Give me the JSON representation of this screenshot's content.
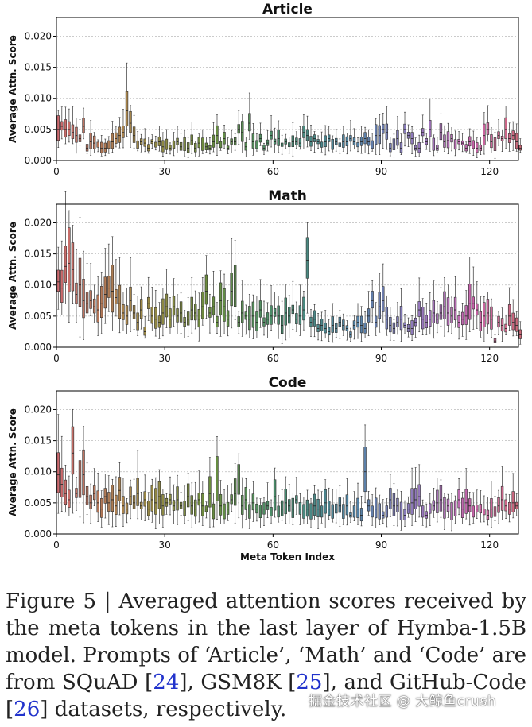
{
  "chart_data": [
    {
      "type": "box",
      "title": "Article",
      "ylabel": "Average Attn. Score",
      "xlabel": "",
      "ylim": [
        0,
        0.023
      ],
      "xlim": [
        0,
        128
      ],
      "yticks": [
        "0.000",
        "0.005",
        "0.010",
        "0.015",
        "0.020"
      ],
      "xticks": [
        "0",
        "30",
        "60",
        "90",
        "120"
      ],
      "medians": [
        0.005,
        0.0055,
        0.005,
        0.005,
        0.0045,
        0.004,
        0.0035,
        0.0055,
        0.002,
        0.003,
        0.0028,
        0.0025,
        0.002,
        0.002,
        0.0025,
        0.003,
        0.0035,
        0.004,
        0.0045,
        0.008,
        0.006,
        0.004,
        0.0025,
        0.003,
        0.0028,
        0.002,
        0.003,
        0.0025,
        0.003,
        0.0022,
        0.0025,
        0.002,
        0.0025,
        0.003,
        0.0022,
        0.0025,
        0.002,
        0.0032,
        0.002,
        0.0028,
        0.0025,
        0.0022,
        0.002,
        0.003,
        0.004,
        0.0025,
        0.0035,
        0.002,
        0.003,
        0.003,
        0.005,
        0.0045,
        0.0022,
        0.006,
        0.003,
        0.0025,
        0.0035,
        0.002,
        0.0028,
        0.004,
        0.003,
        0.0035,
        0.0025,
        0.003,
        0.0025,
        0.003,
        0.003,
        0.0028,
        0.0045,
        0.004,
        0.003,
        0.0035,
        0.003,
        0.0025,
        0.003,
        0.0035,
        0.0025,
        0.003,
        0.0025,
        0.003,
        0.003,
        0.0035,
        0.003,
        0.0025,
        0.003,
        0.0035,
        0.003,
        0.0025,
        0.004,
        0.004,
        0.005,
        0.0045,
        0.002,
        0.0025,
        0.0035,
        0.002,
        0.005,
        0.004,
        0.0035,
        0.002,
        0.002,
        0.0045,
        0.003,
        0.005,
        0.0025,
        0.002,
        0.0045,
        0.003,
        0.0032,
        0.0035,
        0.0025,
        0.003,
        0.0028,
        0.002,
        0.003,
        0.0025,
        0.002,
        0.002,
        0.004,
        0.005,
        0.003,
        0.0025,
        0.004,
        0.0035,
        0.005,
        0.0035,
        0.004,
        0.003,
        0.002
      ],
      "annotations": []
    },
    {
      "type": "box",
      "title": "Math",
      "ylabel": "Average Attn. Score",
      "xlabel": "",
      "ylim": [
        0,
        0.023
      ],
      "xlim": [
        0,
        128
      ],
      "yticks": [
        "0.000",
        "0.005",
        "0.010",
        "0.015",
        "0.020"
      ],
      "xticks": [
        "0",
        "30",
        "60",
        "90",
        "120"
      ],
      "medians": [
        0.0105,
        0.0095,
        0.013,
        0.0135,
        0.0125,
        0.0085,
        0.01,
        0.0075,
        0.007,
        0.0075,
        0.0065,
        0.006,
        0.007,
        0.0085,
        0.0095,
        0.009,
        0.008,
        0.007,
        0.0055,
        0.005,
        0.0075,
        0.0055,
        0.004,
        0.006,
        0.0025,
        0.007,
        0.005,
        0.0045,
        0.004,
        0.0055,
        0.0065,
        0.0045,
        0.0065,
        0.005,
        0.0055,
        0.004,
        0.0045,
        0.006,
        0.0055,
        0.0045,
        0.0065,
        0.009,
        0.0055,
        0.0065,
        0.004,
        0.0075,
        0.0065,
        0.0045,
        0.009,
        0.0095,
        0.004,
        0.0055,
        0.005,
        0.0045,
        0.005,
        0.004,
        0.006,
        0.004,
        0.0045,
        0.005,
        0.0055,
        0.005,
        0.0035,
        0.0055,
        0.005,
        0.006,
        0.0045,
        0.005,
        0.006,
        0.014,
        0.004,
        0.0045,
        0.003,
        0.0035,
        0.003,
        0.0025,
        0.0035,
        0.003,
        0.004,
        0.0035,
        0.003,
        0.002,
        0.0035,
        0.004,
        0.0035,
        0.003,
        0.005,
        0.0075,
        0.004,
        0.0065,
        0.0075,
        0.0045,
        0.0035,
        0.003,
        0.004,
        0.0045,
        0.0035,
        0.003,
        0.003,
        0.004,
        0.006,
        0.0045,
        0.004,
        0.0045,
        0.0055,
        0.0045,
        0.0055,
        0.0065,
        0.0055,
        0.005,
        0.006,
        0.004,
        0.0045,
        0.005,
        0.007,
        0.007,
        0.006,
        0.004,
        0.005,
        0.0055,
        0.0045,
        0.001,
        0.004,
        0.0035,
        0.003,
        0.005,
        0.004,
        0.0035,
        0.002
      ],
      "annotations": []
    },
    {
      "type": "box",
      "title": "Code",
      "ylabel": "Average Attn. Score",
      "xlabel": "Meta Token Index",
      "ylim": [
        0,
        0.023
      ],
      "xlim": [
        0,
        128
      ],
      "yticks": [
        "0.000",
        "0.005",
        "0.010",
        "0.015",
        "0.020"
      ],
      "xticks": [
        "0",
        "30",
        "60",
        "90",
        "120"
      ],
      "medians": [
        0.0095,
        0.008,
        0.0065,
        0.0055,
        0.013,
        0.0065,
        0.0085,
        0.0095,
        0.006,
        0.005,
        0.0065,
        0.005,
        0.004,
        0.006,
        0.005,
        0.0055,
        0.0045,
        0.007,
        0.0045,
        0.004,
        0.006,
        0.005,
        0.0065,
        0.0045,
        0.0055,
        0.004,
        0.0055,
        0.005,
        0.006,
        0.0045,
        0.005,
        0.0055,
        0.0045,
        0.0055,
        0.0045,
        0.004,
        0.006,
        0.0045,
        0.004,
        0.0055,
        0.0045,
        0.004,
        0.0065,
        0.0035,
        0.0085,
        0.0045,
        0.0035,
        0.004,
        0.0055,
        0.0065,
        0.0085,
        0.0045,
        0.0055,
        0.0035,
        0.005,
        0.004,
        0.0035,
        0.004,
        0.0045,
        0.0035,
        0.006,
        0.0035,
        0.004,
        0.005,
        0.0045,
        0.004,
        0.0055,
        0.004,
        0.0035,
        0.004,
        0.0035,
        0.0045,
        0.004,
        0.0035,
        0.005,
        0.004,
        0.0035,
        0.004,
        0.0045,
        0.0035,
        0.0045,
        0.003,
        0.0035,
        0.004,
        0.003,
        0.01,
        0.0045,
        0.0035,
        0.004,
        0.0035,
        0.003,
        0.0035,
        0.0055,
        0.0045,
        0.0045,
        0.0035,
        0.003,
        0.004,
        0.005,
        0.0055,
        0.006,
        0.0035,
        0.003,
        0.004,
        0.0045,
        0.005,
        0.0055,
        0.004,
        0.0045,
        0.0035,
        0.004,
        0.0055,
        0.004,
        0.005,
        0.0045,
        0.0035,
        0.004,
        0.004,
        0.0035,
        0.003,
        0.004,
        0.0035,
        0.0045,
        0.0055,
        0.0045,
        0.004,
        0.005,
        0.0045
      ],
      "annotations": []
    }
  ],
  "caption": {
    "fig_label": "Figure 5",
    "line1": "Averaged attention scores received by the",
    "line2": "meta tokens in the last layer of Hymba-1.5B model.",
    "line3": "Prompts of ‘Article’, ‘Math’ and ‘Code’ are from",
    "line4_a": "SQuAD [",
    "ref1": "24",
    "line4_b": "], GSM8K [",
    "ref2": "25",
    "line4_c": "], and GitHub-Code [",
    "ref3": "26",
    "line4_d": "]",
    "line5": "datasets, respectively."
  },
  "watermark": "掘金技术社区 @ 大鲸鱼crush"
}
